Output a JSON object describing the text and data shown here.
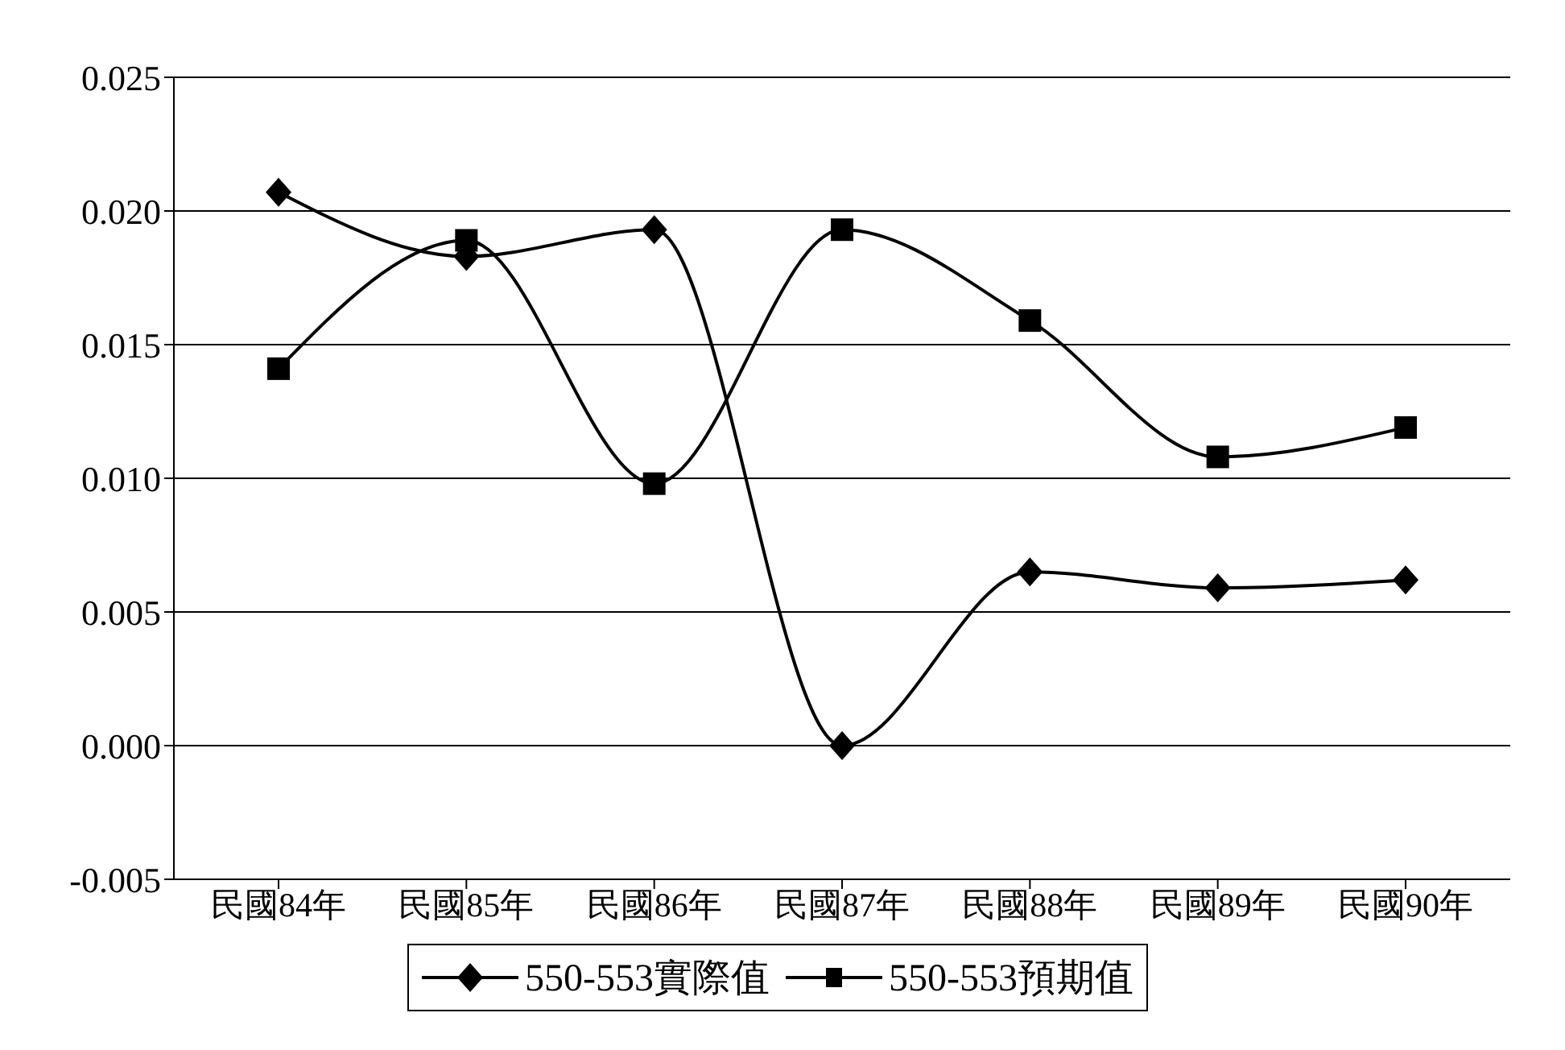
{
  "chart_data": {
    "type": "line",
    "categories": [
      "民國84年",
      "民國85年",
      "民國86年",
      "民國87年",
      "民國88年",
      "民國89年",
      "民國90年"
    ],
    "series": [
      {
        "name": "550-553實際值",
        "color": "#000000",
        "marker": "diamond",
        "values": [
          0.0207,
          0.0183,
          0.0193,
          0.0,
          0.0065,
          0.0059,
          0.0062
        ]
      },
      {
        "name": "550-553預期值",
        "color": "#000000",
        "marker": "square",
        "values": [
          0.0141,
          0.0189,
          0.0098,
          0.0193,
          0.0159,
          0.0108,
          0.0119
        ]
      }
    ],
    "ylim": [
      -0.005,
      0.025
    ],
    "yticks": [
      {
        "value": -0.005,
        "label": "-0.005"
      },
      {
        "value": 0,
        "label": "0.000"
      },
      {
        "value": 0.005,
        "label": "0.005"
      },
      {
        "value": 0.01,
        "label": "0.010"
      },
      {
        "value": 0.015,
        "label": "0.015"
      },
      {
        "value": 0.02,
        "label": "0.020"
      },
      {
        "value": 0.025,
        "label": "0.025"
      }
    ],
    "grid": "y",
    "legend": "bottom",
    "line_style": "solid"
  }
}
